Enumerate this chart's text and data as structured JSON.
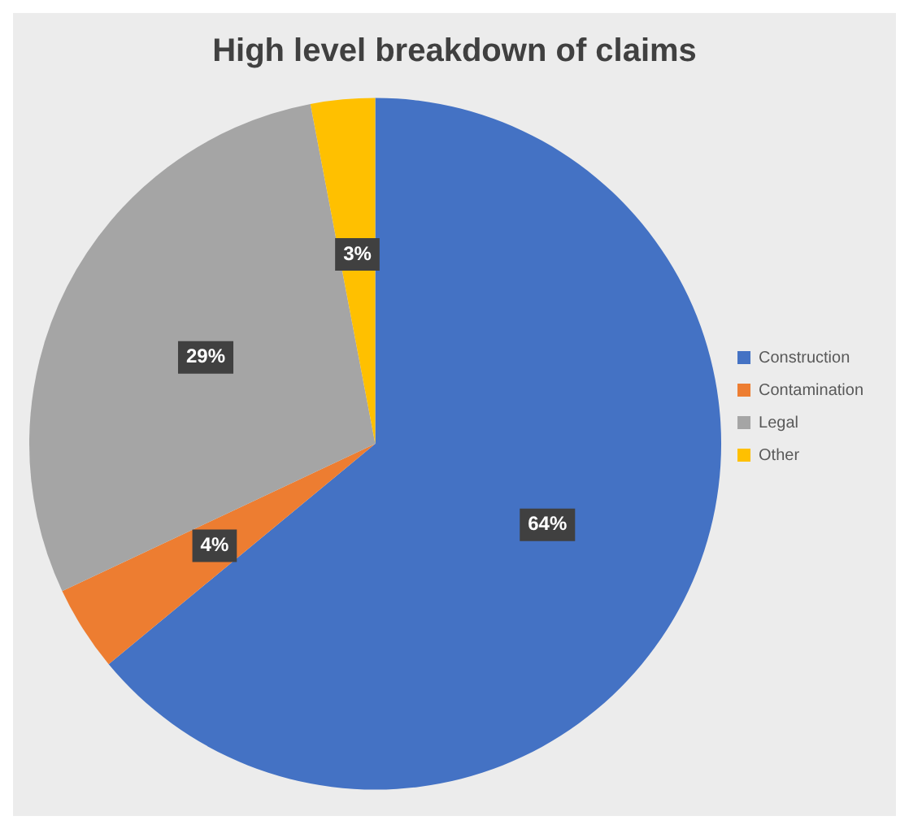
{
  "chart_data": {
    "type": "pie",
    "title": "High level breakdown of claims",
    "categories": [
      "Construction",
      "Contamination",
      "Legal",
      "Other"
    ],
    "values": [
      64,
      4,
      29,
      3
    ],
    "colors": [
      "#4472c4",
      "#ed7d31",
      "#a5a5a5",
      "#ffc000"
    ],
    "value_labels": [
      "64%",
      "4%",
      "29%",
      "3%"
    ],
    "legend": "right"
  }
}
